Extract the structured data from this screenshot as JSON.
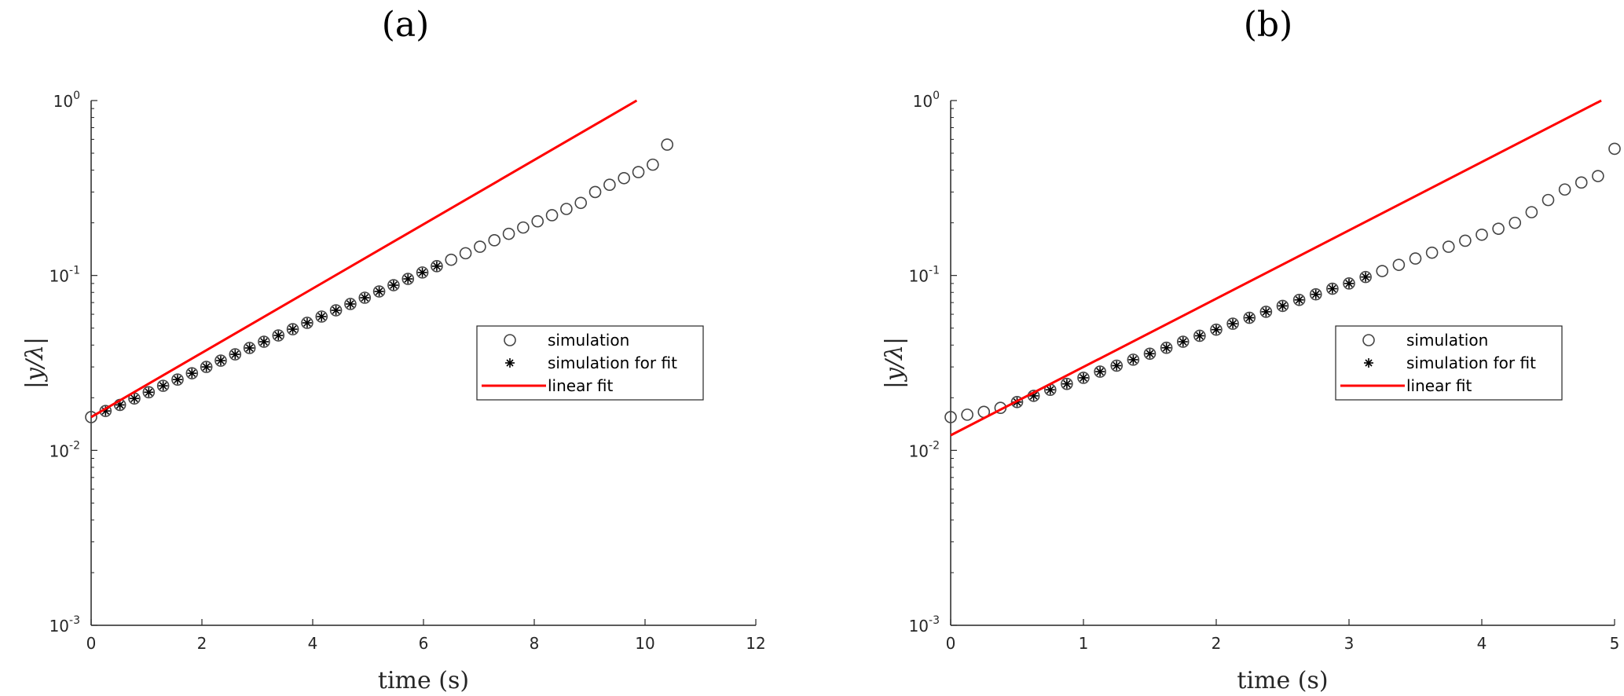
{
  "chart_data": [
    {
      "panel_label": "(a)",
      "type": "scatter",
      "xlabel": "time (s)",
      "ylabel": "|y/λ|",
      "xlim": [
        0,
        12
      ],
      "ylim": [
        0.001,
        1
      ],
      "yscale": "log",
      "xticks": [
        "0",
        "2",
        "4",
        "6",
        "8",
        "10",
        "12"
      ],
      "yticks": [
        {
          "base": "10",
          "exp": "-3"
        },
        {
          "base": "10",
          "exp": "-2"
        },
        {
          "base": "10",
          "exp": "-1"
        },
        {
          "base": "10",
          "exp": "0"
        }
      ],
      "legend_position": "center-right",
      "legend": [
        "simulation",
        "simulation for fit",
        "linear fit"
      ],
      "series": [
        {
          "name": "simulation",
          "marker": "circle",
          "x": [
            0.0,
            0.26,
            0.52,
            0.78,
            1.04,
            1.3,
            1.56,
            1.82,
            2.08,
            2.34,
            2.6,
            2.86,
            3.12,
            3.38,
            3.64,
            3.9,
            4.16,
            4.42,
            4.68,
            4.94,
            5.2,
            5.46,
            5.72,
            5.98,
            6.24,
            6.5,
            6.76,
            7.02,
            7.28,
            7.54,
            7.8,
            8.06,
            8.32,
            8.58,
            8.84,
            9.1,
            9.36,
            9.62,
            9.88,
            10.14,
            10.4
          ],
          "y": [
            0.0155,
            0.0168,
            0.0182,
            0.0198,
            0.0215,
            0.0234,
            0.0254,
            0.0276,
            0.03,
            0.0326,
            0.0354,
            0.0385,
            0.0418,
            0.0454,
            0.0493,
            0.0536,
            0.0582,
            0.0632,
            0.0687,
            0.0746,
            0.081,
            0.088,
            0.0956,
            0.104,
            0.113,
            0.123,
            0.134,
            0.146,
            0.159,
            0.173,
            0.188,
            0.204,
            0.221,
            0.24,
            0.26,
            0.3,
            0.33,
            0.36,
            0.39,
            0.43,
            0.56
          ]
        },
        {
          "name": "simulation for fit",
          "marker": "asterisk",
          "x": [
            0.26,
            0.52,
            0.78,
            1.04,
            1.3,
            1.56,
            1.82,
            2.08,
            2.34,
            2.6,
            2.86,
            3.12,
            3.38,
            3.64,
            3.9,
            4.16,
            4.42,
            4.68,
            4.94,
            5.2,
            5.46,
            5.72,
            5.98,
            6.24
          ],
          "y": [
            0.0168,
            0.0182,
            0.0198,
            0.0215,
            0.0234,
            0.0254,
            0.0276,
            0.03,
            0.0326,
            0.0354,
            0.0385,
            0.0418,
            0.0454,
            0.0493,
            0.0536,
            0.0582,
            0.0632,
            0.0687,
            0.0746,
            0.081,
            0.088,
            0.0956,
            0.104,
            0.113
          ]
        },
        {
          "name": "linear fit",
          "marker": "line",
          "color": "#ff0000",
          "x": [
            0.0,
            9.85
          ],
          "y": [
            0.0155,
            1.0
          ]
        }
      ]
    },
    {
      "panel_label": "(b)",
      "type": "scatter",
      "xlabel": "time (s)",
      "ylabel": "|y/λ|",
      "xlim": [
        0,
        5
      ],
      "ylim": [
        0.001,
        1
      ],
      "yscale": "log",
      "xticks": [
        "0",
        "1",
        "2",
        "3",
        "4",
        "5"
      ],
      "yticks": [
        {
          "base": "10",
          "exp": "-3"
        },
        {
          "base": "10",
          "exp": "-2"
        },
        {
          "base": "10",
          "exp": "-1"
        },
        {
          "base": "10",
          "exp": "0"
        }
      ],
      "legend_position": "center-right",
      "legend": [
        "simulation",
        "simulation for fit",
        "linear fit"
      ],
      "series": [
        {
          "name": "simulation",
          "marker": "circle",
          "x": [
            0.0,
            0.125,
            0.25,
            0.375,
            0.5,
            0.625,
            0.75,
            0.875,
            1.0,
            1.125,
            1.25,
            1.375,
            1.5,
            1.625,
            1.75,
            1.875,
            2.0,
            2.125,
            2.25,
            2.375,
            2.5,
            2.625,
            2.75,
            2.875,
            3.0,
            3.125,
            3.25,
            3.375,
            3.5,
            3.625,
            3.75,
            3.875,
            4.0,
            4.125,
            4.25,
            4.375,
            4.5,
            4.625,
            4.75,
            4.875,
            5.0
          ],
          "y": [
            0.0155,
            0.016,
            0.0166,
            0.0175,
            0.0189,
            0.0205,
            0.0222,
            0.024,
            0.026,
            0.0282,
            0.0305,
            0.033,
            0.0357,
            0.0386,
            0.0418,
            0.0452,
            0.049,
            0.053,
            0.0573,
            0.062,
            0.067,
            0.0725,
            0.078,
            0.084,
            0.09,
            0.098,
            0.106,
            0.115,
            0.125,
            0.135,
            0.146,
            0.158,
            0.171,
            0.185,
            0.2,
            0.23,
            0.27,
            0.31,
            0.34,
            0.37,
            0.53
          ]
        },
        {
          "name": "simulation for fit",
          "marker": "asterisk",
          "x": [
            0.5,
            0.625,
            0.75,
            0.875,
            1.0,
            1.125,
            1.25,
            1.375,
            1.5,
            1.625,
            1.75,
            1.875,
            2.0,
            2.125,
            2.25,
            2.375,
            2.5,
            2.625,
            2.75,
            2.875,
            3.0,
            3.125
          ],
          "y": [
            0.0189,
            0.0205,
            0.0222,
            0.024,
            0.026,
            0.0282,
            0.0305,
            0.033,
            0.0357,
            0.0386,
            0.0418,
            0.0452,
            0.049,
            0.053,
            0.0573,
            0.062,
            0.067,
            0.0725,
            0.078,
            0.084,
            0.09,
            0.098
          ]
        },
        {
          "name": "linear fit",
          "marker": "line",
          "color": "#ff0000",
          "x": [
            0.0,
            4.9
          ],
          "y": [
            0.0122,
            1.0
          ]
        }
      ]
    }
  ]
}
